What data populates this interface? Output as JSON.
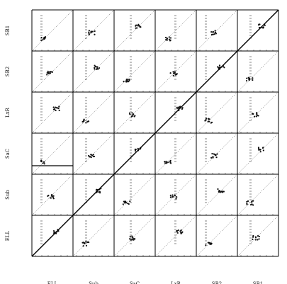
{
  "chart_data": {
    "type": "scatter",
    "title": "",
    "variables": [
      "ELL",
      "Sub",
      "SaC",
      "LxR",
      "SB2",
      "SB1"
    ],
    "x_labels": [
      "ELL",
      "Sub",
      "SaC",
      "LxR",
      "SB2",
      "SB1"
    ],
    "y_labels_top_to_bottom": [
      "SB1",
      "SB2",
      "LxR",
      "SaC",
      "Sub",
      "ELL"
    ],
    "grid": false,
    "reference_line": "y=x in every panel",
    "legend": "none",
    "axis_range": [
      0,
      1
    ]
  }
}
